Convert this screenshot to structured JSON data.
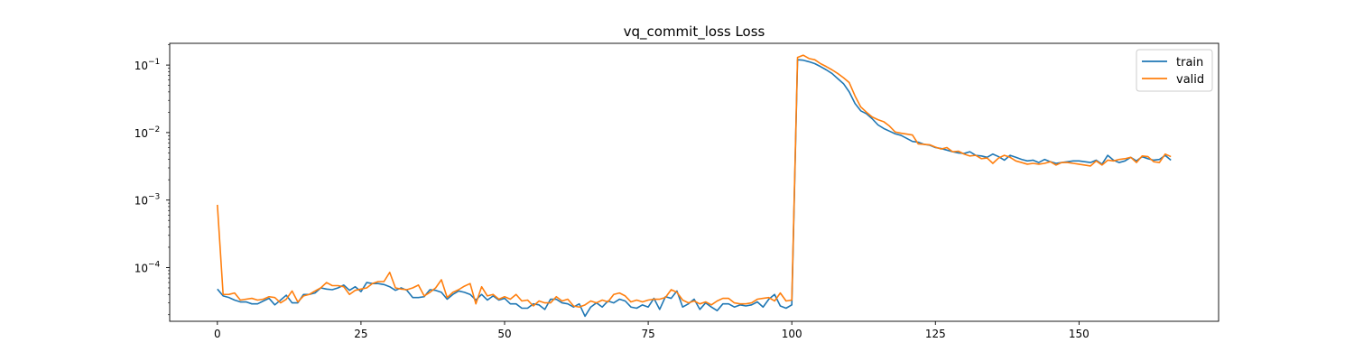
{
  "chart_data": {
    "type": "line",
    "title": "vq_commit_loss Loss",
    "xlabel": "",
    "ylabel": "",
    "yscale": "log",
    "xlim": [
      -8.3,
      174.3
    ],
    "ylim": [
      1.6e-05,
      0.21
    ],
    "xticks": [
      0,
      25,
      50,
      75,
      100,
      125,
      150
    ],
    "yticks": [
      {
        "value": 0.0001,
        "label": "10",
        "exp": "−4"
      },
      {
        "value": 0.001,
        "label": "10",
        "exp": "−3"
      },
      {
        "value": 0.01,
        "label": "10",
        "exp": "−2"
      },
      {
        "value": 0.1,
        "label": "10",
        "exp": "−1"
      }
    ],
    "grid": false,
    "legend": "top-right",
    "series": [
      {
        "name": "train",
        "color": "#1f77b4",
        "values": [
          4.8e-05,
          3.8e-05,
          3.6e-05,
          3.3e-05,
          3.1e-05,
          3.1e-05,
          2.9e-05,
          2.9e-05,
          3.2e-05,
          3.5e-05,
          2.8e-05,
          3.3e-05,
          3.9e-05,
          3e-05,
          3e-05,
          4e-05,
          4e-05,
          4.2e-05,
          5e-05,
          4.8e-05,
          4.7e-05,
          5e-05,
          5.5e-05,
          4.6e-05,
          5.2e-05,
          4.4e-05,
          6e-05,
          5.8e-05,
          5.8e-05,
          5.6e-05,
          5.2e-05,
          4.6e-05,
          5e-05,
          4.6e-05,
          3.6e-05,
          3.6e-05,
          3.7e-05,
          4.7e-05,
          4.6e-05,
          4.3e-05,
          3.4e-05,
          4e-05,
          4.5e-05,
          4.3e-05,
          4e-05,
          3.3e-05,
          4e-05,
          3.3e-05,
          3.8e-05,
          3.3e-05,
          3.5e-05,
          2.9e-05,
          2.9e-05,
          2.5e-05,
          2.5e-05,
          2.9e-05,
          2.8e-05,
          2.4e-05,
          3.4e-05,
          3.4e-05,
          3e-05,
          2.9e-05,
          2.6e-05,
          2.9e-05,
          1.9e-05,
          2.6e-05,
          3e-05,
          2.6e-05,
          3.2e-05,
          3e-05,
          3.4e-05,
          3.2e-05,
          2.6e-05,
          2.5e-05,
          2.8e-05,
          2.6e-05,
          3.5e-05,
          2.4e-05,
          3.7e-05,
          3.5e-05,
          4.5e-05,
          2.6e-05,
          2.9e-05,
          3.4e-05,
          2.4e-05,
          3e-05,
          2.6e-05,
          2.3e-05,
          2.9e-05,
          2.9e-05,
          2.6e-05,
          2.8e-05,
          2.7e-05,
          2.8e-05,
          3.1e-05,
          2.6e-05,
          3.4e-05,
          4e-05,
          2.7e-05,
          2.5e-05,
          2.8e-05,
          0.12,
          0.118,
          0.112,
          0.105,
          0.095,
          0.085,
          0.075,
          0.063,
          0.053,
          0.04,
          0.027,
          0.021,
          0.019,
          0.016,
          0.013,
          0.0115,
          0.0105,
          0.0096,
          0.0091,
          0.0082,
          0.0074,
          0.0072,
          0.0067,
          0.0065,
          0.006,
          0.0058,
          0.0055,
          0.0052,
          0.005,
          0.0049,
          0.0052,
          0.0046,
          0.0045,
          0.0043,
          0.0048,
          0.0044,
          0.0039,
          0.0046,
          0.0043,
          0.004,
          0.0038,
          0.0039,
          0.0036,
          0.004,
          0.0037,
          0.0035,
          0.0036,
          0.0037,
          0.0038,
          0.0038,
          0.0037,
          0.0036,
          0.0039,
          0.0034,
          0.0046,
          0.0039,
          0.0036,
          0.0038,
          0.0043,
          0.0038,
          0.0044,
          0.0041,
          0.0039,
          0.004,
          0.0046,
          0.0039
        ]
      },
      {
        "name": "valid",
        "color": "#ff7f0e",
        "values": [
          0.00085,
          4e-05,
          4e-05,
          4.2e-05,
          3.3e-05,
          3.4e-05,
          3.5e-05,
          3.3e-05,
          3.4e-05,
          3.7e-05,
          3.6e-05,
          3e-05,
          3.4e-05,
          4.5e-05,
          3.1e-05,
          3.8e-05,
          4e-05,
          4.5e-05,
          5e-05,
          6e-05,
          5.4e-05,
          5.4e-05,
          5.2e-05,
          4e-05,
          4.6e-05,
          4.8e-05,
          5e-05,
          5.8e-05,
          6.2e-05,
          6.2e-05,
          8.5e-05,
          5e-05,
          4.8e-05,
          4.7e-05,
          5e-05,
          5.5e-05,
          3.8e-05,
          4.3e-05,
          5e-05,
          6.6e-05,
          3.6e-05,
          4.3e-05,
          4.7e-05,
          5.3e-05,
          5.8e-05,
          2.9e-05,
          5.2e-05,
          3.8e-05,
          4e-05,
          3.4e-05,
          3.7e-05,
          3.4e-05,
          4e-05,
          3.2e-05,
          3.3e-05,
          2.7e-05,
          3.2e-05,
          3e-05,
          3e-05,
          3.7e-05,
          3.2e-05,
          3.4e-05,
          2.7e-05,
          2.6e-05,
          2.8e-05,
          3.2e-05,
          3e-05,
          3.3e-05,
          3.1e-05,
          4e-05,
          4.2e-05,
          3.8e-05,
          3.1e-05,
          3.3e-05,
          3.1e-05,
          3.3e-05,
          3.4e-05,
          3.4e-05,
          3.6e-05,
          4.7e-05,
          4.3e-05,
          3.3e-05,
          3e-05,
          3.2e-05,
          2.9e-05,
          3.1e-05,
          2.8e-05,
          3.2e-05,
          3.5e-05,
          3.5e-05,
          3e-05,
          2.9e-05,
          2.9e-05,
          3e-05,
          3.4e-05,
          3.5e-05,
          3.6e-05,
          3.2e-05,
          4.2e-05,
          3.2e-05,
          3.3e-05,
          0.13,
          0.14,
          0.125,
          0.12,
          0.105,
          0.095,
          0.085,
          0.075,
          0.065,
          0.055,
          0.035,
          0.024,
          0.02,
          0.017,
          0.0155,
          0.0145,
          0.0125,
          0.0102,
          0.0098,
          0.0095,
          0.0092,
          0.0068,
          0.0067,
          0.0066,
          0.0061,
          0.0057,
          0.006,
          0.0052,
          0.0053,
          0.0048,
          0.0045,
          0.0046,
          0.0041,
          0.0042,
          0.0035,
          0.0042,
          0.0046,
          0.0043,
          0.0038,
          0.0036,
          0.0034,
          0.0035,
          0.0034,
          0.0035,
          0.0037,
          0.0033,
          0.0036,
          0.0036,
          0.0035,
          0.0034,
          0.0033,
          0.0032,
          0.0038,
          0.0033,
          0.0039,
          0.0038,
          0.004,
          0.0041,
          0.0043,
          0.0036,
          0.0045,
          0.0044,
          0.0037,
          0.0036,
          0.0048,
          0.0044
        ]
      }
    ]
  }
}
